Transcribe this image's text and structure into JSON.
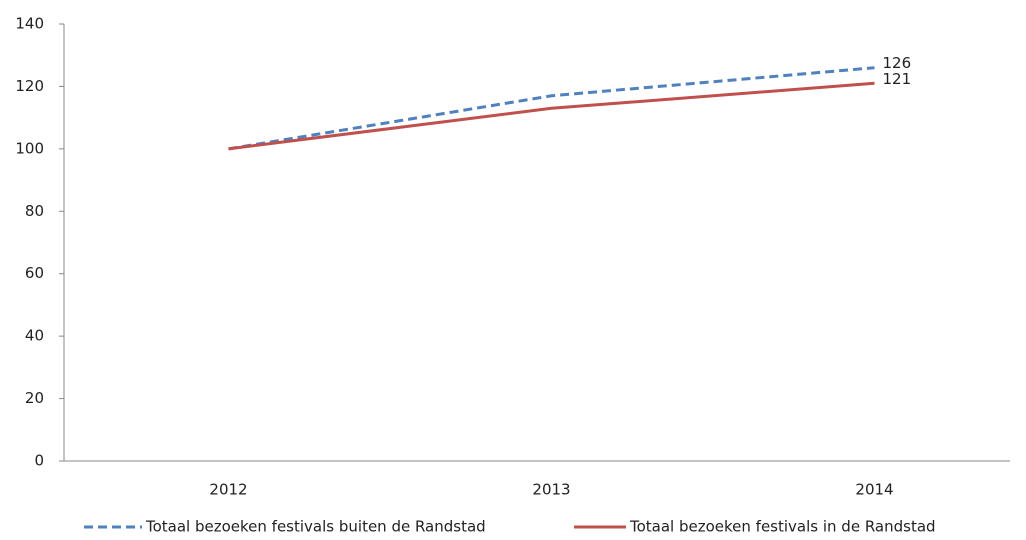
{
  "chart_data": {
    "type": "line",
    "categories": [
      "2012",
      "2013",
      "2014"
    ],
    "series": [
      {
        "name": "Totaal bezoeken festivals buiten de Randstad",
        "color": "#4f81bd",
        "dashed": true,
        "values": [
          100,
          117,
          126
        ]
      },
      {
        "name": "Totaal bezoeken festivals in de Randstad",
        "color": "#c0504d",
        "dashed": false,
        "values": [
          100,
          113,
          121
        ]
      }
    ],
    "ylim": [
      0,
      140
    ],
    "yticks": [
      0,
      20,
      40,
      60,
      80,
      100,
      120,
      140
    ],
    "grid": false,
    "legend": "bottom"
  }
}
